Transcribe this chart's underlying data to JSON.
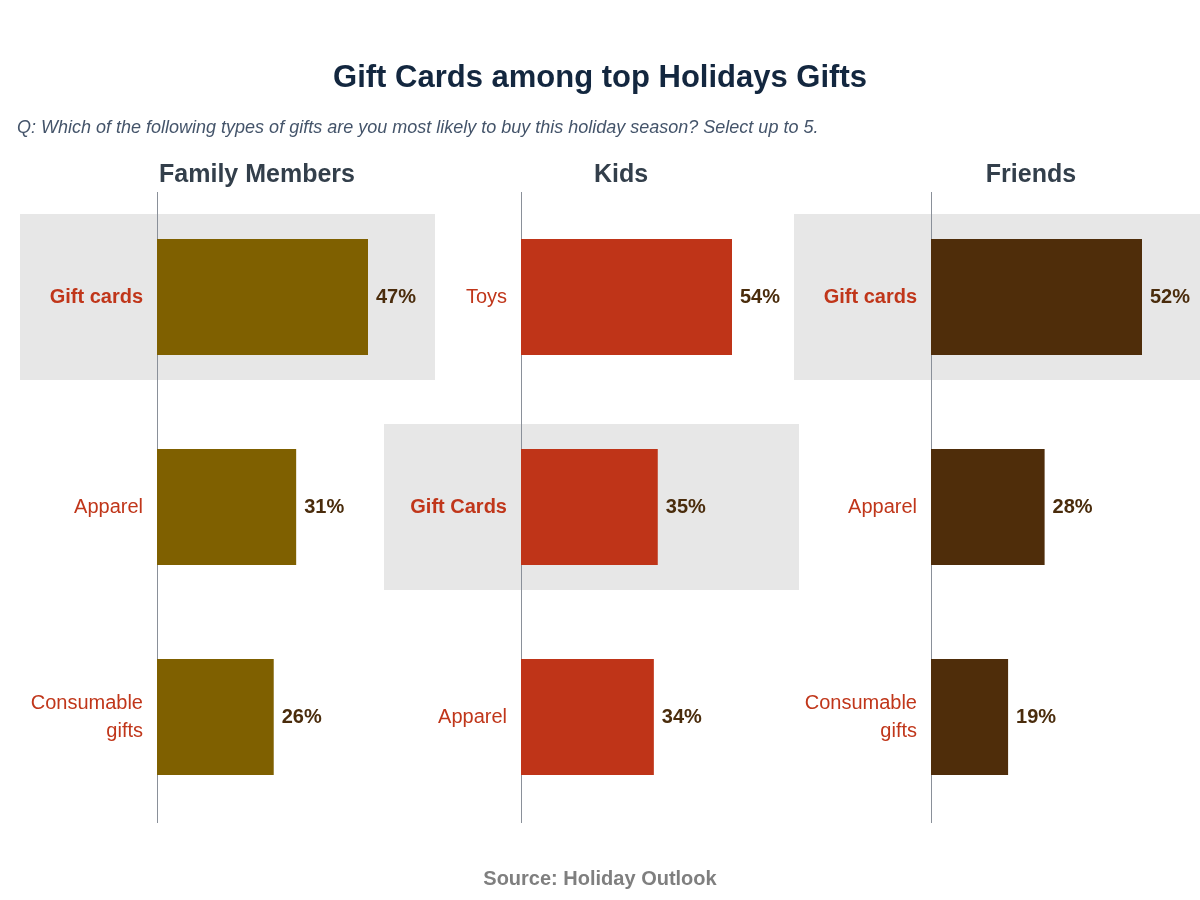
{
  "chart_data": [
    {
      "type": "other",
      "title": "Gift Cards among top Holidays Gifts",
      "subtitle": "Q: Which of the following types of gifts are you most likely to buy this holiday season? Select up to 5."
    },
    {
      "type": "bar",
      "orientation": "horizontal",
      "title": "Family Members",
      "categories": [
        "Gift cards",
        "Apparel",
        "Consumable gifts"
      ],
      "values": [
        47,
        31,
        26
      ],
      "color": "#7f6000",
      "value_labels": [
        "47%",
        "31%",
        "26%"
      ],
      "tick_labels": "y",
      "bands": [
        {
          "axis": "y",
          "from": "Gift cards",
          "to": "Gift cards",
          "color": "#e7e7e7"
        }
      ]
    },
    {
      "type": "bar",
      "orientation": "horizontal",
      "title": "Kids",
      "categories": [
        "Toys",
        "Gift Cards",
        "Apparel"
      ],
      "values": [
        54,
        35,
        34
      ],
      "color": "#bf3418",
      "value_labels": [
        "54%",
        "35%",
        "34%"
      ],
      "tick_labels": "y",
      "bands": [
        {
          "axis": "y",
          "from": "Gift Cards",
          "to": "Gift Cards",
          "color": "#e7e7e7"
        }
      ]
    },
    {
      "type": "bar",
      "orientation": "horizontal",
      "title": "Friends",
      "categories": [
        "Gift cards",
        "Apparel",
        "Consumable gifts"
      ],
      "values": [
        52,
        28,
        19
      ],
      "color": "#4f2d0a",
      "value_labels": [
        "52%",
        "28%",
        "19%"
      ],
      "tick_labels": "y",
      "bands": [
        {
          "axis": "y",
          "from": "Gift cards",
          "to": "Gift cards",
          "color": "#e7e7e7"
        }
      ]
    },
    {
      "type": "other",
      "annotations": [
        "Source: Holiday Outlook"
      ]
    }
  ]
}
